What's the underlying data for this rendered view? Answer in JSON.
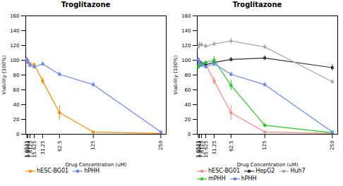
{
  "chart_data": [
    {
      "type": "line",
      "title": "Troglitazone",
      "xlabel": "Drug Concentration (uM)",
      "ylabel": "Viability (100%)",
      "x": [
        1.9531,
        3.9063,
        7.8125,
        15.625,
        31.25,
        62.5,
        125,
        250
      ],
      "xlim": [
        0,
        260
      ],
      "xticks": [
        1.9531,
        3.9063,
        7.8125,
        15.625,
        31.25,
        62.5,
        125,
        250
      ],
      "ylim": [
        0,
        160
      ],
      "yticks": [
        0,
        20,
        40,
        60,
        80,
        100,
        120,
        140,
        160
      ],
      "legend": "lower left",
      "series": [
        {
          "name": "hESC-BG01",
          "color": "#FF8C00",
          "marker": "circle",
          "values": [
            101,
            99,
            95,
            94,
            72,
            29,
            3,
            1
          ],
          "yerr": [
            3,
            2,
            2,
            2,
            5,
            10,
            1,
            0.5
          ]
        },
        {
          "name": "hPHH",
          "color": "#6688FF",
          "marker": "square",
          "values": [
            101,
            97,
            93,
            91,
            95,
            81,
            67,
            3
          ],
          "yerr": [
            3,
            2,
            2,
            2,
            3,
            3,
            3,
            1
          ]
        }
      ]
    },
    {
      "type": "line",
      "title": "Troglitazone",
      "xlabel": "Drug Concentration (uM)",
      "ylabel": "Viability (100%)",
      "x": [
        1.9531,
        3.9063,
        7.8125,
        15.625,
        31.25,
        62.5,
        125,
        250
      ],
      "xlim": [
        0,
        260
      ],
      "xticks": [
        1.9531,
        3.9063,
        7.8125,
        15.625,
        31.25,
        62.5,
        125,
        250
      ],
      "ylim": [
        0,
        160
      ],
      "yticks": [
        0,
        20,
        40,
        60,
        80,
        100,
        120,
        140,
        160
      ],
      "legend": "lower left",
      "series": [
        {
          "name": "hESC-BG01",
          "color": "#FF8888",
          "marker": "circle",
          "values": [
            101,
            99,
            95,
            94,
            72,
            29,
            3,
            1
          ],
          "yerr": [
            3,
            2,
            2,
            2,
            5,
            10,
            1,
            0.5
          ]
        },
        {
          "name": "HepG2",
          "color": "#333333",
          "marker": "square",
          "values": [
            100,
            97,
            96,
            94,
            97,
            101,
            103,
            90
          ],
          "yerr": [
            3,
            2,
            2,
            2,
            5,
            3,
            3,
            4
          ]
        },
        {
          "name": "Huh7",
          "color": "#AAAAAA",
          "marker": "square",
          "values": [
            118,
            121,
            121,
            119,
            122,
            126,
            118,
            71
          ],
          "yerr": [
            3,
            4,
            3,
            3,
            3,
            4,
            3,
            3
          ]
        },
        {
          "name": "mPHH",
          "color": "#22CC22",
          "marker": "circle",
          "values": [
            91,
            93,
            95,
            97,
            100,
            66,
            12,
            2
          ],
          "yerr": [
            3,
            2,
            2,
            2,
            5,
            7,
            3,
            1
          ]
        },
        {
          "name": "hPHH",
          "color": "#6688FF",
          "marker": "square",
          "values": [
            101,
            97,
            93,
            91,
            95,
            81,
            67,
            3
          ],
          "yerr": [
            3,
            2,
            2,
            2,
            3,
            3,
            3,
            1
          ]
        }
      ]
    }
  ]
}
